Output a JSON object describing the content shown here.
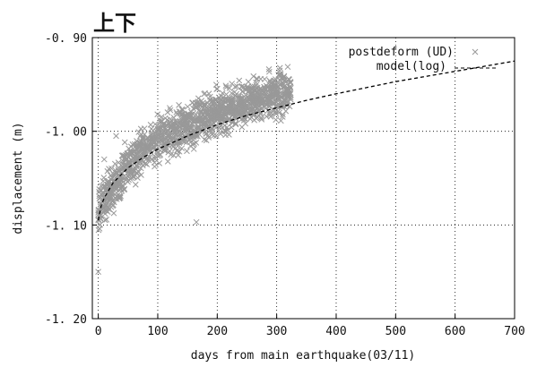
{
  "chart_data": {
    "type": "scatter",
    "title": "上下",
    "xlabel": "days from main earthquake(03/11)",
    "ylabel": "displacement (m)",
    "xlim": [
      -10,
      700
    ],
    "ylim": [
      -1.2,
      -0.9
    ],
    "y_inverted": true,
    "grid": true,
    "legend_position": "top-right",
    "x_ticks": [
      "0",
      "100",
      "200",
      "300",
      "400",
      "500",
      "600",
      "700"
    ],
    "y_ticks": [
      "-0.90",
      "-1.00",
      "-1.10",
      "-1.20"
    ],
    "series": [
      {
        "name": "postdeform (UD)",
        "kind": "scatter",
        "marker": "x",
        "color": "#999999",
        "x_range": [
          0,
          325
        ],
        "y_trend_samples": [
          [
            0,
            -1.085
          ],
          [
            25,
            -1.06
          ],
          [
            50,
            -1.035
          ],
          [
            100,
            -1.01
          ],
          [
            150,
            -0.995
          ],
          [
            200,
            -0.98
          ],
          [
            250,
            -0.97
          ],
          [
            300,
            -0.96
          ],
          [
            325,
            -0.955
          ]
        ],
        "spread": 0.02,
        "outliers": [
          [
            0,
            -1.15
          ],
          [
            165,
            -1.097
          ],
          [
            10,
            -1.03
          ],
          [
            30,
            -1.005
          ]
        ]
      },
      {
        "name": "model(log)",
        "kind": "line",
        "style": "dashed",
        "color": "#000000",
        "x": [
          0,
          5,
          10,
          25,
          50,
          75,
          100,
          150,
          200,
          250,
          300,
          350,
          400,
          500,
          600,
          700
        ],
        "y": [
          -1.095,
          -1.079,
          -1.071,
          -1.055,
          -1.039,
          -1.028,
          -1.019,
          -1.005,
          -0.993,
          -0.983,
          -0.975,
          -0.967,
          -0.96,
          -0.947,
          -0.936,
          -0.925
        ]
      }
    ]
  }
}
